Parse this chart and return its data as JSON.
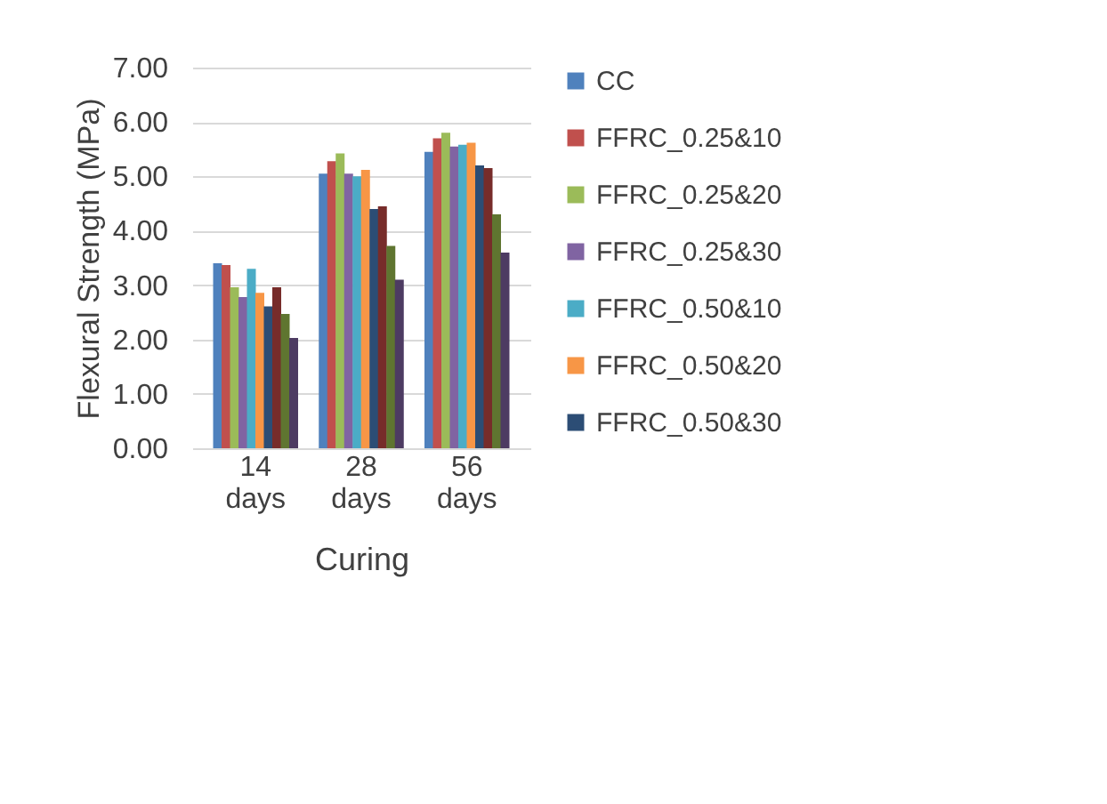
{
  "chart_data": {
    "type": "bar",
    "xlabel": "Curing",
    "ylabel": "Flexural Strength (MPa)",
    "categories": [
      "14 days",
      "28 days",
      "56 days"
    ],
    "series": [
      {
        "name": "CC",
        "color": "#4f81bd",
        "values": [
          3.4,
          5.05,
          5.45
        ]
      },
      {
        "name": "FFRC_0.25&10",
        "color": "#c0504d",
        "values": [
          3.37,
          5.28,
          5.7
        ]
      },
      {
        "name": "FFRC_0.25&20",
        "color": "#9bbb59",
        "values": [
          2.96,
          5.42,
          5.8
        ]
      },
      {
        "name": "FFRC_0.25&30",
        "color": "#8064a2",
        "values": [
          2.78,
          5.05,
          5.55
        ]
      },
      {
        "name": "FFRC_0.50&10",
        "color": "#4bacc6",
        "values": [
          3.3,
          5.0,
          5.58
        ]
      },
      {
        "name": "FFRC_0.50&20",
        "color": "#f79646",
        "values": [
          2.86,
          5.12,
          5.62
        ]
      },
      {
        "name": "FFRC_0.50&30",
        "color": "#2c4d75",
        "values": [
          2.61,
          4.4,
          5.2
        ]
      },
      {
        "color": "#772c2a",
        "values": [
          2.96,
          4.45,
          5.15
        ]
      },
      {
        "color": "#5f7530",
        "values": [
          2.47,
          3.72,
          4.3
        ]
      },
      {
        "color": "#4d3b62",
        "values": [
          2.03,
          3.1,
          3.6
        ]
      }
    ],
    "ylim": [
      0,
      7
    ],
    "yticks": [
      {
        "value": 0,
        "label": "0.00"
      },
      {
        "value": 1,
        "label": "1.00"
      },
      {
        "value": 2,
        "label": "2.00"
      },
      {
        "value": 3,
        "label": "3.00"
      },
      {
        "value": 4,
        "label": "4.00"
      },
      {
        "value": 5,
        "label": "5.00"
      },
      {
        "value": 6,
        "label": "6.00"
      },
      {
        "value": 7,
        "label": "7.00"
      }
    ],
    "grid": "y",
    "legend": "right"
  }
}
